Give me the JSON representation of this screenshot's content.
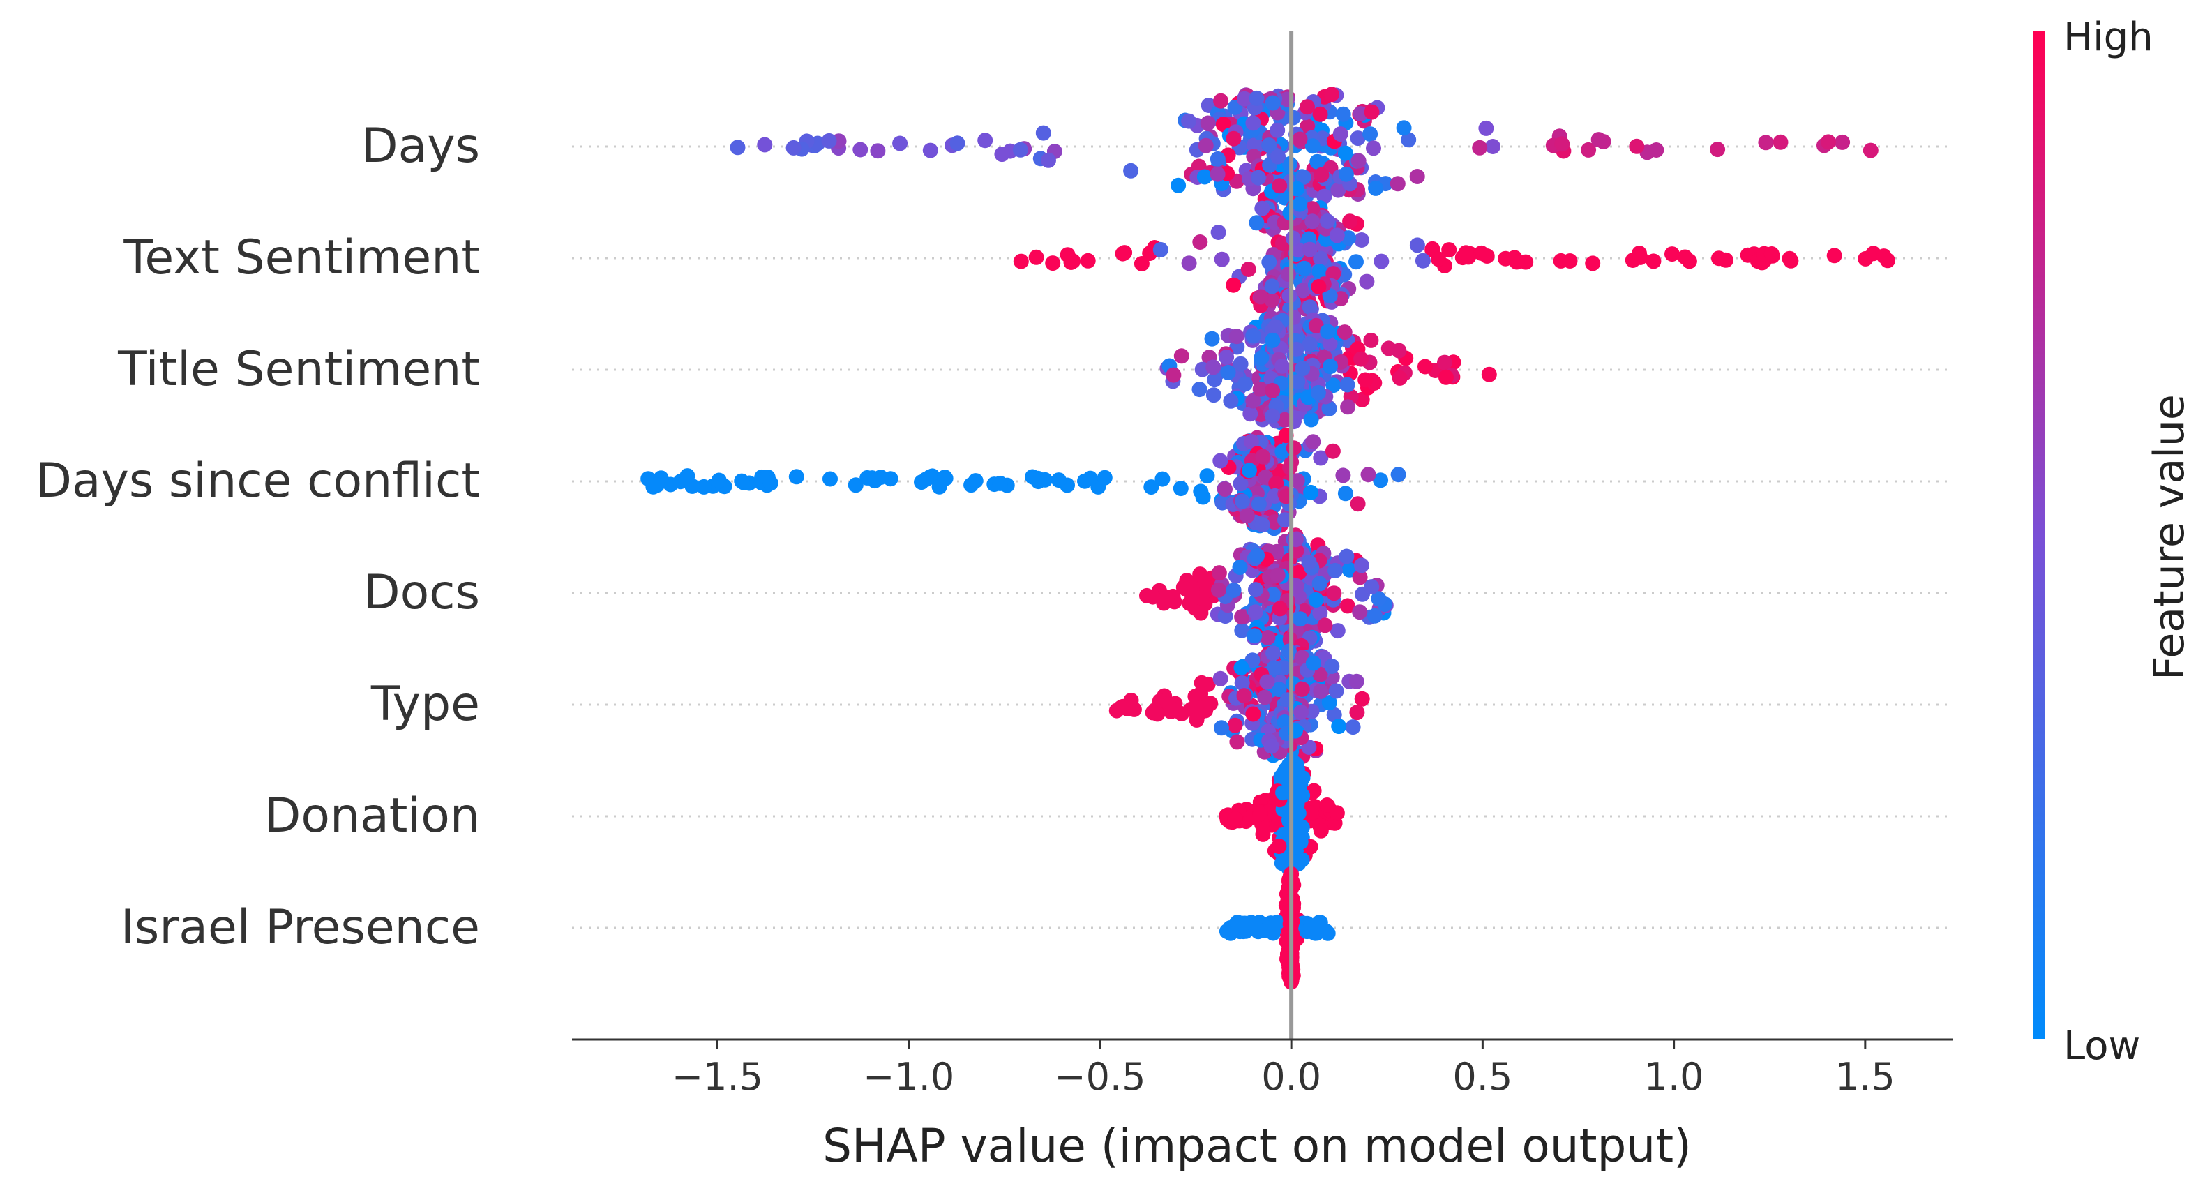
{
  "chart_data": {
    "type": "scatter",
    "subtype": "shap-beeswarm",
    "title": "",
    "xlabel": "SHAP value (impact on model output)",
    "ylabel": "",
    "xlim": [
      -1.88,
      1.73
    ],
    "xticks": [
      -1.5,
      -1.0,
      -0.5,
      0.0,
      0.5,
      1.0,
      1.5
    ],
    "xtick_labels": [
      "−1.5",
      "−1.0",
      "−0.5",
      "0.0",
      "0.5",
      "1.0",
      "1.5"
    ],
    "grid": "dotted horizontal guide per feature",
    "features": [
      {
        "name": "Days",
        "min": -1.45,
        "max": 1.53,
        "spread_width": 0.3
      },
      {
        "name": "Text Sentiment",
        "min": -0.72,
        "max": 1.56,
        "spread_width": 0.16
      },
      {
        "name": "Title Sentiment",
        "min": -0.33,
        "max": 0.56,
        "spread_width": 0.16
      },
      {
        "name": "Days since conflict",
        "min": -1.72,
        "max": 0.29,
        "spread_width": 0.12
      },
      {
        "name": "Docs",
        "min": -0.38,
        "max": 0.26,
        "spread_width": 0.14
      },
      {
        "name": "Type",
        "min": -0.46,
        "max": 0.2,
        "spread_width": 0.14
      },
      {
        "name": "Donation",
        "min": -0.17,
        "max": 0.12,
        "spread_width": 0.04
      },
      {
        "name": "Israel Presence",
        "min": -0.17,
        "max": 0.1,
        "spread_width": 0.01
      }
    ],
    "colorbar": {
      "label": "Feature value",
      "high_label": "High",
      "low_label": "Low",
      "low_color": "#008bfb",
      "high_color": "#ff0052"
    }
  }
}
